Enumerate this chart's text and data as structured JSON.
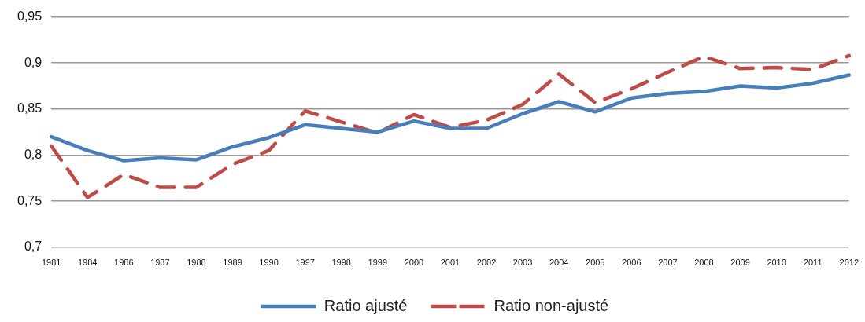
{
  "chart_data": {
    "type": "line",
    "categories": [
      "1981",
      "1984",
      "1986",
      "1987",
      "1988",
      "1989",
      "1990",
      "1997",
      "1998",
      "1999",
      "2000",
      "2001",
      "2002",
      "2003",
      "2004",
      "2005",
      "2006",
      "2007",
      "2008",
      "2009",
      "2010",
      "2011",
      "2012"
    ],
    "series": [
      {
        "name": "Ratio ajusté",
        "color": "#4a7ebb",
        "line_style": "solid",
        "values": [
          0.82,
          0.805,
          0.794,
          0.797,
          0.795,
          0.809,
          0.819,
          0.833,
          0.829,
          0.825,
          0.837,
          0.829,
          0.829,
          0.845,
          0.858,
          0.847,
          0.862,
          0.867,
          0.869,
          0.875,
          0.873,
          0.878,
          0.887
        ]
      },
      {
        "name": "Ratio non-ajusté",
        "color": "#be4b48",
        "line_style": "dashed",
        "values": [
          0.81,
          0.754,
          0.779,
          0.765,
          0.765,
          0.79,
          0.805,
          0.848,
          0.836,
          0.824,
          0.844,
          0.83,
          0.838,
          0.855,
          0.888,
          0.857,
          0.872,
          0.89,
          0.907,
          0.894,
          0.895,
          0.893,
          0.908
        ]
      }
    ],
    "ylim": [
      0.7,
      0.95
    ],
    "yticks": [
      {
        "value": 0.7,
        "label": "0,7"
      },
      {
        "value": 0.75,
        "label": "0,75"
      },
      {
        "value": 0.8,
        "label": "0,8"
      },
      {
        "value": 0.85,
        "label": "0,85"
      },
      {
        "value": 0.9,
        "label": "0,9"
      },
      {
        "value": 0.95,
        "label": "0,95"
      }
    ],
    "grid": "y",
    "legend": "bottom",
    "marker": "none"
  }
}
